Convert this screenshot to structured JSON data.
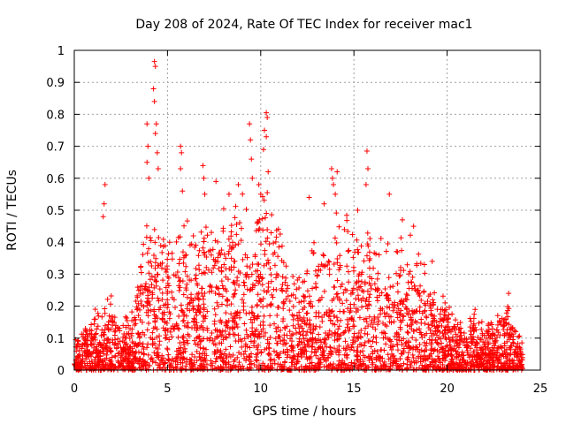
{
  "chart_data": {
    "type": "scatter",
    "title": "Day 208 of 2024, Rate Of TEC Index for receiver mac1",
    "xlabel": "GPS time / hours",
    "ylabel": "ROTI / TECUs",
    "xlim": [
      0,
      25
    ],
    "ylim": [
      0,
      1
    ],
    "xticks": [
      0,
      5,
      10,
      15,
      20,
      25
    ],
    "yticks": [
      0,
      0.1,
      0.2,
      0.3,
      0.4,
      0.5,
      0.6,
      0.7,
      0.8,
      0.9,
      1
    ],
    "xtick_labels": [
      "0",
      "5",
      "10",
      "15",
      "20",
      "25"
    ],
    "ytick_labels": [
      "0",
      "0.1",
      "0.2",
      "0.3",
      "0.4",
      "0.5",
      "0.6",
      "0.7",
      "0.8",
      "0.9",
      "1"
    ],
    "grid": true,
    "marker": "plus",
    "color": "#ff0000",
    "envelope": {
      "hours": [
        0,
        0.5,
        1,
        1.5,
        2,
        2.5,
        3,
        3.5,
        4,
        4.5,
        5,
        5.5,
        6,
        6.5,
        7,
        7.5,
        8,
        8.5,
        9,
        9.5,
        10,
        10.5,
        11,
        11.5,
        12,
        12.5,
        13,
        13.5,
        14,
        14.5,
        15,
        15.5,
        16,
        16.5,
        17,
        17.5,
        18,
        18.5,
        19,
        19.5,
        20,
        20.5,
        21,
        21.5,
        22,
        22.5,
        23,
        23.5,
        24
      ],
      "typical_max_roti": [
        0.08,
        0.12,
        0.18,
        0.16,
        0.22,
        0.14,
        0.18,
        0.3,
        0.45,
        0.5,
        0.4,
        0.38,
        0.42,
        0.38,
        0.45,
        0.48,
        0.45,
        0.48,
        0.5,
        0.45,
        0.55,
        0.48,
        0.42,
        0.3,
        0.28,
        0.35,
        0.42,
        0.4,
        0.45,
        0.42,
        0.45,
        0.38,
        0.4,
        0.38,
        0.32,
        0.38,
        0.4,
        0.32,
        0.28,
        0.25,
        0.2,
        0.15,
        0.14,
        0.16,
        0.12,
        0.14,
        0.22,
        0.18,
        0.08
      ]
    },
    "outliers": [
      {
        "x": 1.65,
        "y": 0.58
      },
      {
        "x": 1.6,
        "y": 0.52
      },
      {
        "x": 1.55,
        "y": 0.48
      },
      {
        "x": 3.9,
        "y": 0.77
      },
      {
        "x": 3.95,
        "y": 0.7
      },
      {
        "x": 3.9,
        "y": 0.65
      },
      {
        "x": 4.0,
        "y": 0.6
      },
      {
        "x": 4.3,
        "y": 0.965
      },
      {
        "x": 4.35,
        "y": 0.95
      },
      {
        "x": 4.25,
        "y": 0.88
      },
      {
        "x": 4.3,
        "y": 0.84
      },
      {
        "x": 4.4,
        "y": 0.77
      },
      {
        "x": 4.35,
        "y": 0.74
      },
      {
        "x": 4.45,
        "y": 0.68
      },
      {
        "x": 4.5,
        "y": 0.63
      },
      {
        "x": 5.7,
        "y": 0.7
      },
      {
        "x": 5.75,
        "y": 0.68
      },
      {
        "x": 5.7,
        "y": 0.63
      },
      {
        "x": 5.8,
        "y": 0.56
      },
      {
        "x": 6.9,
        "y": 0.64
      },
      {
        "x": 6.95,
        "y": 0.6
      },
      {
        "x": 7.0,
        "y": 0.55
      },
      {
        "x": 7.6,
        "y": 0.59
      },
      {
        "x": 8.3,
        "y": 0.55
      },
      {
        "x": 8.8,
        "y": 0.58
      },
      {
        "x": 9.4,
        "y": 0.77
      },
      {
        "x": 9.45,
        "y": 0.72
      },
      {
        "x": 9.5,
        "y": 0.66
      },
      {
        "x": 9.55,
        "y": 0.6
      },
      {
        "x": 10.3,
        "y": 0.805
      },
      {
        "x": 10.35,
        "y": 0.79
      },
      {
        "x": 10.2,
        "y": 0.75
      },
      {
        "x": 10.3,
        "y": 0.73
      },
      {
        "x": 10.15,
        "y": 0.69
      },
      {
        "x": 10.4,
        "y": 0.62
      },
      {
        "x": 9.9,
        "y": 0.58
      },
      {
        "x": 10.0,
        "y": 0.55
      },
      {
        "x": 12.6,
        "y": 0.54
      },
      {
        "x": 13.4,
        "y": 0.52
      },
      {
        "x": 13.8,
        "y": 0.63
      },
      {
        "x": 13.85,
        "y": 0.6
      },
      {
        "x": 13.9,
        "y": 0.58
      },
      {
        "x": 14.1,
        "y": 0.62
      },
      {
        "x": 14.0,
        "y": 0.55
      },
      {
        "x": 15.2,
        "y": 0.5
      },
      {
        "x": 15.7,
        "y": 0.685
      },
      {
        "x": 15.75,
        "y": 0.63
      },
      {
        "x": 15.65,
        "y": 0.58
      },
      {
        "x": 16.9,
        "y": 0.55
      },
      {
        "x": 17.6,
        "y": 0.47
      },
      {
        "x": 18.2,
        "y": 0.45
      },
      {
        "x": 19.2,
        "y": 0.34
      },
      {
        "x": 23.3,
        "y": 0.24
      },
      {
        "x": 21.5,
        "y": 0.19
      }
    ]
  }
}
